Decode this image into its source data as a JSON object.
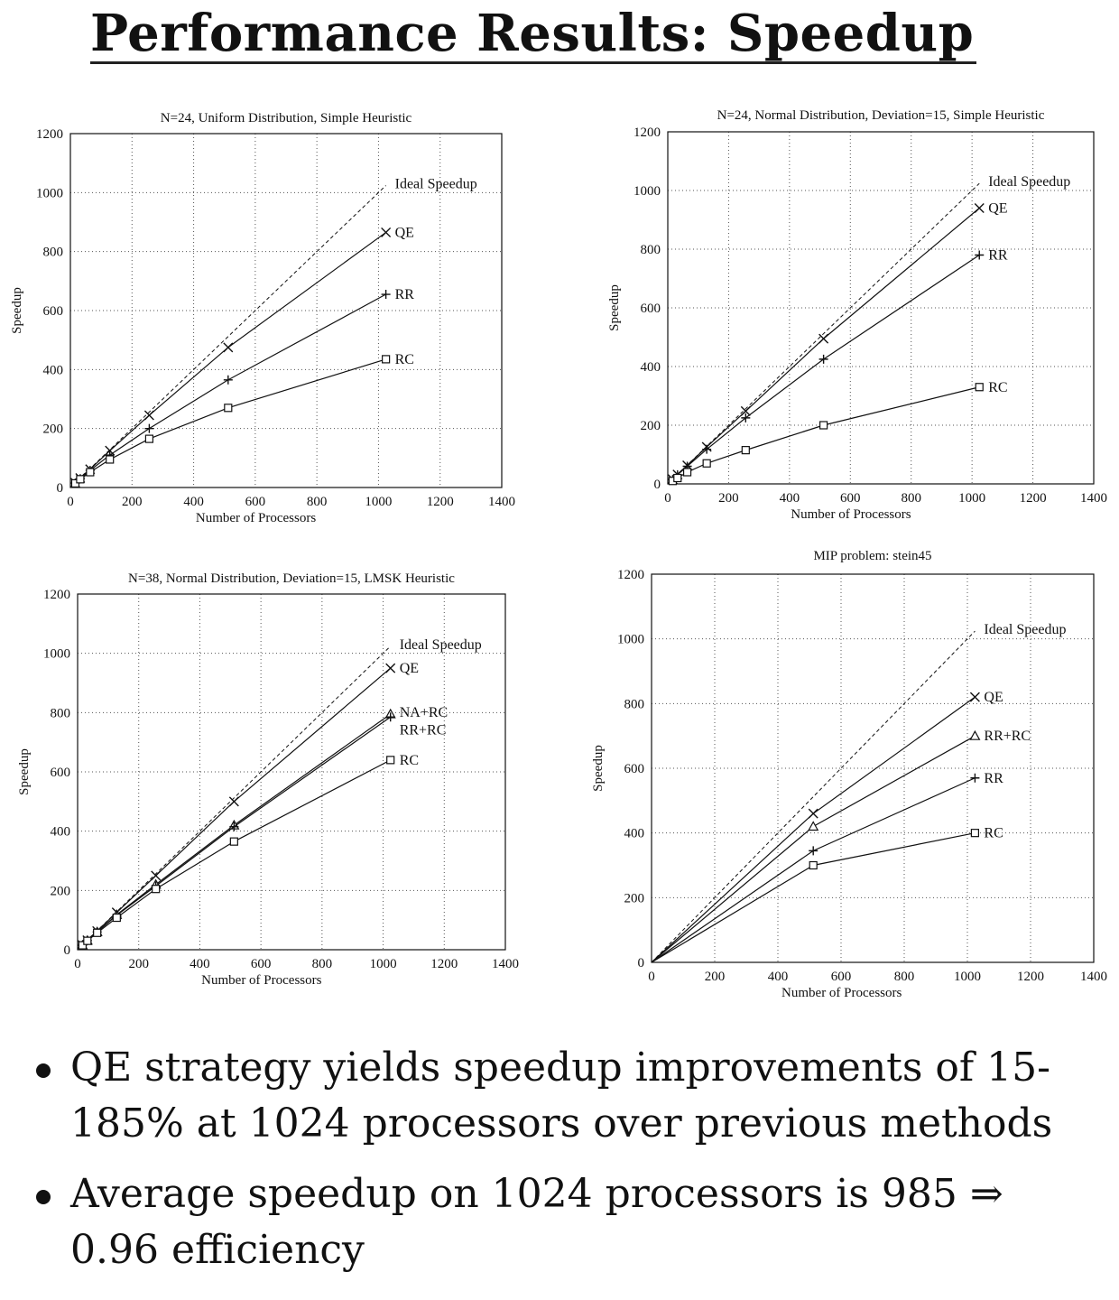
{
  "slide": {
    "title": "Performance Results: Speedup",
    "bullets": [
      "QE strategy yields speedup improvements of 15-185% at 1024 processors over previous methods",
      "Average speedup on 1024 processors is 985 ⇒ 0.96 efficiency"
    ]
  },
  "chart_data": [
    {
      "type": "line",
      "title": "N=24, Uniform Distribution, Simple Heuristic",
      "xlabel": "Number of Processors",
      "ylabel": "Speedup",
      "xlim": [
        0,
        1400
      ],
      "ylim": [
        0,
        1200
      ],
      "xticks": [
        "0",
        "200",
        "400",
        "600",
        "800",
        "1000",
        "1200",
        "1400"
      ],
      "yticks": [
        "0",
        "200",
        "400",
        "600",
        "800",
        "1000",
        "1200"
      ],
      "grid": true,
      "series": [
        {
          "name": "Ideal Speedup",
          "style": "dashed",
          "marker": "none",
          "x": [
            0,
            1024
          ],
          "y": [
            0,
            1024
          ]
        },
        {
          "name": "QE",
          "style": "solid",
          "marker": "x",
          "x": [
            0,
            16,
            32,
            64,
            128,
            256,
            512,
            1024
          ],
          "y": [
            0,
            16,
            32,
            62,
            125,
            245,
            475,
            865
          ]
        },
        {
          "name": "RR",
          "style": "solid",
          "marker": "plus",
          "x": [
            0,
            16,
            32,
            64,
            128,
            256,
            512,
            1024
          ],
          "y": [
            0,
            15,
            30,
            58,
            110,
            200,
            365,
            655
          ]
        },
        {
          "name": "RC",
          "style": "solid",
          "marker": "square",
          "x": [
            0,
            16,
            32,
            64,
            128,
            256,
            512,
            1024
          ],
          "y": [
            0,
            14,
            28,
            52,
            95,
            165,
            270,
            435
          ]
        }
      ]
    },
    {
      "type": "line",
      "title": "N=24, Normal Distribution, Deviation=15, Simple Heuristic",
      "xlabel": "Number of Processors",
      "ylabel": "Speedup",
      "xlim": [
        0,
        1400
      ],
      "ylim": [
        0,
        1200
      ],
      "xticks": [
        "0",
        "200",
        "400",
        "600",
        "800",
        "1000",
        "1200",
        "1400"
      ],
      "yticks": [
        "0",
        "200",
        "400",
        "600",
        "800",
        "1000",
        "1200"
      ],
      "grid": true,
      "series": [
        {
          "name": "Ideal Speedup",
          "style": "dashed",
          "marker": "none",
          "x": [
            0,
            1024
          ],
          "y": [
            0,
            1024
          ]
        },
        {
          "name": "QE",
          "style": "solid",
          "marker": "x",
          "x": [
            0,
            16,
            32,
            64,
            128,
            256,
            512,
            1024
          ],
          "y": [
            0,
            16,
            32,
            63,
            126,
            248,
            495,
            940
          ]
        },
        {
          "name": "RR",
          "style": "solid",
          "marker": "plus",
          "x": [
            0,
            16,
            32,
            64,
            128,
            256,
            512,
            1024
          ],
          "y": [
            0,
            15,
            31,
            60,
            118,
            225,
            425,
            780
          ]
        },
        {
          "name": "RC",
          "style": "solid",
          "marker": "square",
          "x": [
            0,
            16,
            32,
            64,
            128,
            256,
            512,
            1024
          ],
          "y": [
            0,
            10,
            20,
            40,
            70,
            115,
            200,
            330
          ]
        }
      ]
    },
    {
      "type": "line",
      "title": "N=38, Normal Distribution, Deviation=15, LMSK Heuristic",
      "xlabel": "Number of Processors",
      "ylabel": "Speedup",
      "xlim": [
        0,
        1400
      ],
      "ylim": [
        0,
        1200
      ],
      "xticks": [
        "0",
        "200",
        "400",
        "600",
        "800",
        "1000",
        "1200",
        "1400"
      ],
      "yticks": [
        "0",
        "200",
        "400",
        "600",
        "800",
        "1000",
        "1200"
      ],
      "grid": true,
      "series": [
        {
          "name": "Ideal Speedup",
          "style": "dashed",
          "marker": "none",
          "x": [
            0,
            1024
          ],
          "y": [
            0,
            1024
          ]
        },
        {
          "name": "QE",
          "style": "solid",
          "marker": "x",
          "x": [
            0,
            16,
            32,
            64,
            128,
            256,
            512,
            1024
          ],
          "y": [
            0,
            16,
            32,
            63,
            126,
            250,
            500,
            950
          ]
        },
        {
          "name": "NA+RC",
          "style": "solid",
          "marker": "triangle",
          "x": [
            0,
            16,
            32,
            64,
            128,
            256,
            512,
            1024
          ],
          "y": [
            0,
            15,
            31,
            60,
            118,
            220,
            420,
            795
          ]
        },
        {
          "name": "RR+RC",
          "style": "solid",
          "marker": "plus",
          "x": [
            0,
            16,
            32,
            64,
            128,
            256,
            512,
            1024
          ],
          "y": [
            0,
            15,
            31,
            60,
            116,
            215,
            415,
            785
          ]
        },
        {
          "name": "RC",
          "style": "solid",
          "marker": "square",
          "x": [
            0,
            16,
            32,
            64,
            128,
            256,
            512,
            1024
          ],
          "y": [
            0,
            15,
            30,
            57,
            108,
            205,
            365,
            640
          ]
        }
      ]
    },
    {
      "type": "line",
      "title": "MIP problem: stein45",
      "xlabel": "Number of Processors",
      "ylabel": "Speedup",
      "xlim": [
        0,
        1400
      ],
      "ylim": [
        0,
        1200
      ],
      "xticks": [
        "0",
        "200",
        "400",
        "600",
        "800",
        "1000",
        "1200",
        "1400"
      ],
      "yticks": [
        "0",
        "200",
        "400",
        "600",
        "800",
        "1000",
        "1200"
      ],
      "grid": true,
      "series": [
        {
          "name": "Ideal Speedup",
          "style": "dashed",
          "marker": "none",
          "x": [
            0,
            1024
          ],
          "y": [
            0,
            1024
          ]
        },
        {
          "name": "QE",
          "style": "solid",
          "marker": "x",
          "x": [
            0,
            512,
            1024
          ],
          "y": [
            0,
            460,
            820
          ]
        },
        {
          "name": "RR+RC",
          "style": "solid",
          "marker": "triangle",
          "x": [
            0,
            512,
            1024
          ],
          "y": [
            0,
            420,
            700
          ]
        },
        {
          "name": "RR",
          "style": "solid",
          "marker": "plus",
          "x": [
            0,
            512,
            1024
          ],
          "y": [
            0,
            345,
            570
          ]
        },
        {
          "name": "RC",
          "style": "solid",
          "marker": "square",
          "x": [
            0,
            512,
            1024
          ],
          "y": [
            0,
            300,
            400
          ]
        }
      ]
    }
  ]
}
